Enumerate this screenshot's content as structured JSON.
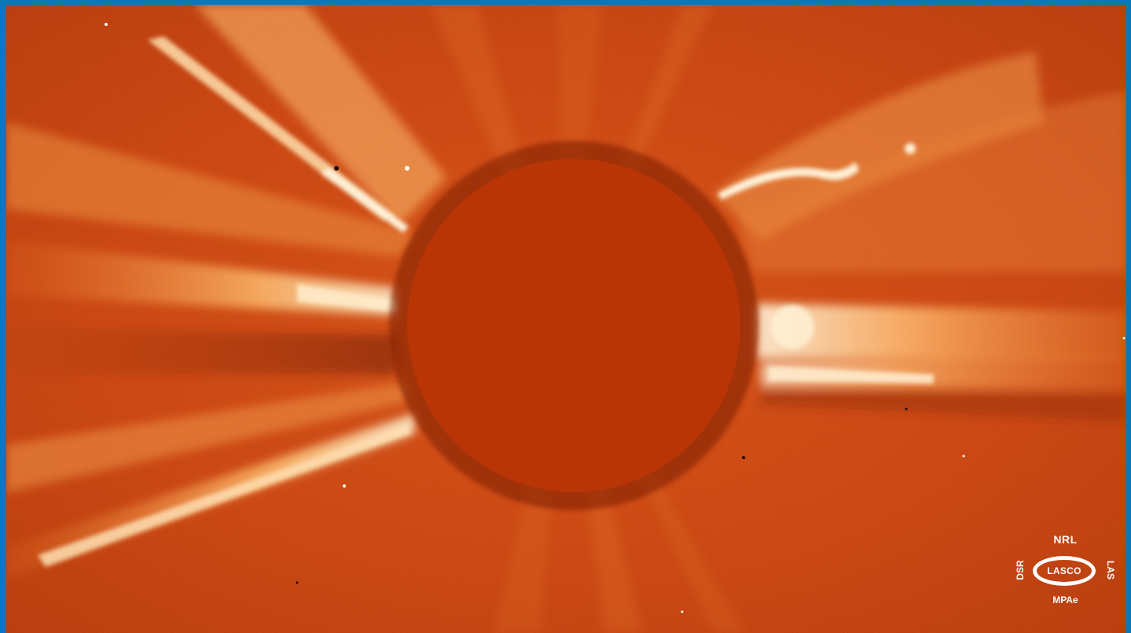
{
  "image": {
    "subject": "coronagraph-image",
    "colors": {
      "frame_border": "#0b78b8",
      "background": "#c73d0a",
      "occulter_disk": "#b83505",
      "streamer_bright": "#ffe6b8",
      "streamer_mid": "#f28a3a",
      "dark_lane": "#8a1e02"
    }
  },
  "logo": {
    "top_text": "NRL",
    "center_text": "LASCO",
    "left_text": "DSR",
    "right_text": "LAS",
    "bottom_text": "MPAe"
  }
}
